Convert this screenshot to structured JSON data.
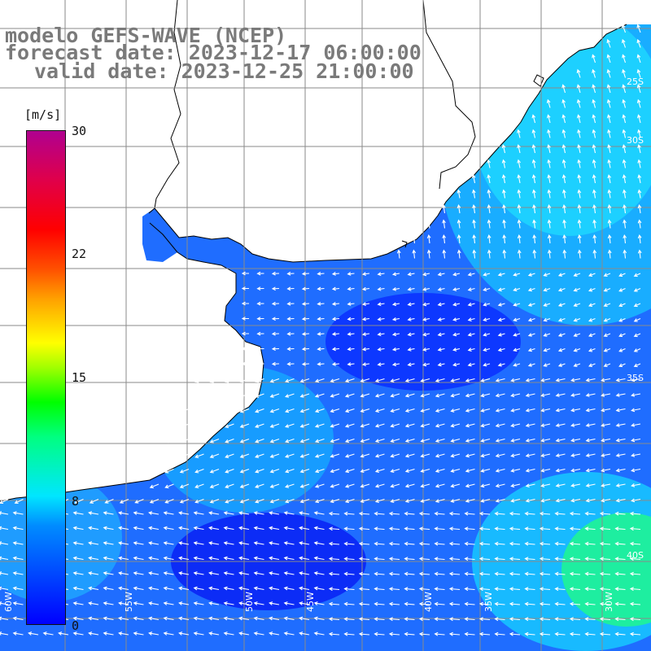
{
  "title": {
    "line1": "modelo GEFS-WAVE (NCEP)",
    "line2": "forecast date: 2023-12-17 06:00:00",
    "line3": "valid date: 2023-12-25 21:00:00"
  },
  "colorbar": {
    "unit": "[m/s]",
    "ticks": [
      "30",
      "22",
      "15",
      "8",
      "0"
    ],
    "tick_values": [
      30,
      22,
      15,
      8,
      0
    ],
    "range": [
      0,
      30
    ],
    "colors": [
      "#0000ff",
      "#008cff",
      "#00e6ff",
      "#00ff00",
      "#ffff00",
      "#ff5000",
      "#ff0000",
      "#b00090"
    ]
  },
  "map": {
    "lon_labels": [
      "60W",
      "55W",
      "50W",
      "45W",
      "40W",
      "35W",
      "30W"
    ],
    "lat_labels": [
      "25S",
      "30S",
      "35S",
      "40S"
    ],
    "land_color": "#ffffff",
    "grid_color": "#8a8a8a",
    "arrow_color": "#ffffff",
    "coastline_color": "#000000"
  }
}
